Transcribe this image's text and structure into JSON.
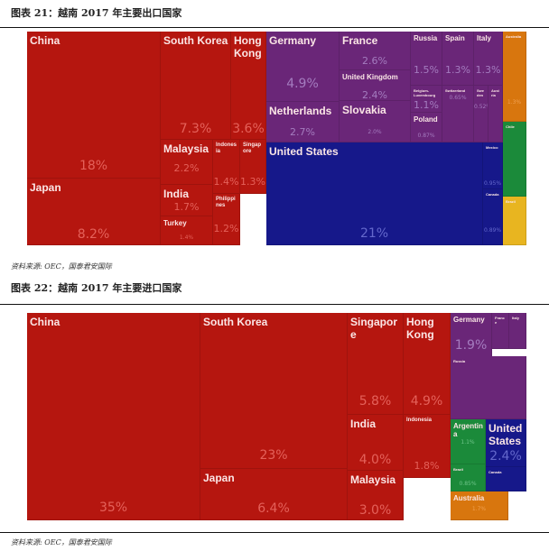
{
  "figures": [
    {
      "title": "图表 21：越南 2017 年主要出口国家",
      "source": "资料来源: OEC，国泰君安国际",
      "chart_data": {
        "type": "treemap",
        "title": "越南 2017 年主要出口国家",
        "unit": "% of exports",
        "cells": [
          {
            "name": "China",
            "value": "18%"
          },
          {
            "name": "Japan",
            "value": "8.2%"
          },
          {
            "name": "South Korea",
            "value": "7.3%"
          },
          {
            "name": "Hong Kong",
            "value": "3.6%"
          },
          {
            "name": "Malaysia",
            "value": "2.2%"
          },
          {
            "name": "India",
            "value": "1.7%"
          },
          {
            "name": "Turkey",
            "value": "1.4%"
          },
          {
            "name": "Indonesia",
            "value": "1.4%"
          },
          {
            "name": "Singapore",
            "value": "1.3%"
          },
          {
            "name": "Philippines",
            "value": "1.2%"
          },
          {
            "name": "Germany",
            "value": "4.9%"
          },
          {
            "name": "Netherlands",
            "value": "2.7%"
          },
          {
            "name": "France",
            "value": "2.6%"
          },
          {
            "name": "United Kingdom",
            "value": "2.4%"
          },
          {
            "name": "Slovakia",
            "value": "2.0%"
          },
          {
            "name": "Russia",
            "value": "1.5%"
          },
          {
            "name": "Belgium-Luxembourg",
            "value": "1.1%"
          },
          {
            "name": "Poland",
            "value": "0.87%"
          },
          {
            "name": "Spain",
            "value": "1.3%"
          },
          {
            "name": "Switzerland",
            "value": "0.65%"
          },
          {
            "name": "Italy",
            "value": "1.3%"
          },
          {
            "name": "Sweden",
            "value": "0.52%"
          },
          {
            "name": "Austria",
            "value": ""
          },
          {
            "name": "United States",
            "value": "21%"
          },
          {
            "name": "Mexico",
            "value": "0.95%"
          },
          {
            "name": "Canada",
            "value": "0.89%"
          },
          {
            "name": "Australia",
            "value": "1.3%"
          },
          {
            "name": "Chile",
            "value": ""
          },
          {
            "name": "Brazil",
            "value": ""
          }
        ]
      }
    },
    {
      "title": "图表 22：越南 2017 年主要进口国家",
      "source": "资料来源: OEC，国泰君安国际",
      "chart_data": {
        "type": "treemap",
        "title": "越南 2017 年主要进口国家",
        "unit": "% of imports",
        "cells": [
          {
            "name": "China",
            "value": "35%"
          },
          {
            "name": "South Korea",
            "value": "23%"
          },
          {
            "name": "Japan",
            "value": "6.4%"
          },
          {
            "name": "Singapore",
            "value": "5.8%"
          },
          {
            "name": "India",
            "value": "4.0%"
          },
          {
            "name": "Malaysia",
            "value": "3.0%"
          },
          {
            "name": "Hong Kong",
            "value": "4.9%"
          },
          {
            "name": "Indonesia",
            "value": "1.8%"
          },
          {
            "name": "Germany",
            "value": "1.9%"
          },
          {
            "name": "France",
            "value": ""
          },
          {
            "name": "Italy",
            "value": ""
          },
          {
            "name": "Russia",
            "value": ""
          },
          {
            "name": "Argentina",
            "value": "1.1%"
          },
          {
            "name": "Brazil",
            "value": "0.85%"
          },
          {
            "name": "United States",
            "value": "2.4%"
          },
          {
            "name": "Canada",
            "value": ""
          },
          {
            "name": "Australia",
            "value": "1.7%"
          }
        ]
      }
    }
  ]
}
